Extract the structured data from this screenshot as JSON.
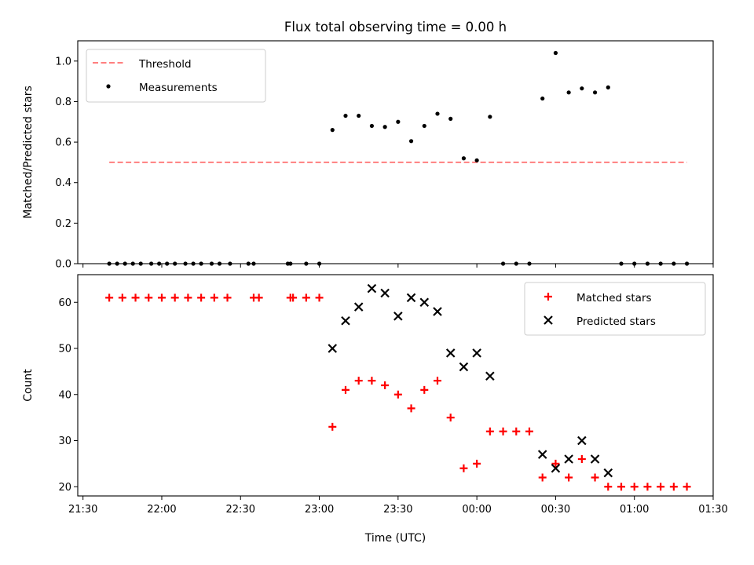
{
  "chart_data": [
    {
      "type": "scatter",
      "title": "Flux total observing time = 0.00 h",
      "xlabel": "",
      "ylabel": "Matched/Predicted stars",
      "xlim": [
        "21:28",
        "01:30"
      ],
      "ylim": [
        0,
        1.1
      ],
      "yticks": [
        "0.0",
        "0.2",
        "0.4",
        "0.6",
        "0.8",
        "1.0"
      ],
      "legend": {
        "position": "upper-left",
        "entries": [
          "Threshold",
          "Measurements"
        ]
      },
      "threshold": {
        "name": "Threshold",
        "value": 0.5,
        "x_start": "21:40",
        "x_end": "01:20",
        "color": "#ff7f7f",
        "style": "dashed"
      },
      "series": [
        {
          "name": "Measurements",
          "marker": "dot",
          "color": "#000000",
          "points": [
            [
              "21:40",
              0.0
            ],
            [
              "21:43",
              0.0
            ],
            [
              "21:46",
              0.0
            ],
            [
              "21:49",
              0.0
            ],
            [
              "21:52",
              0.0
            ],
            [
              "21:56",
              0.0
            ],
            [
              "21:59",
              0.0
            ],
            [
              "22:02",
              0.0
            ],
            [
              "22:05",
              0.0
            ],
            [
              "22:09",
              0.0
            ],
            [
              "22:12",
              0.0
            ],
            [
              "22:15",
              0.0
            ],
            [
              "22:19",
              0.0
            ],
            [
              "22:22",
              0.0
            ],
            [
              "22:26",
              0.0
            ],
            [
              "22:33",
              0.0
            ],
            [
              "22:35",
              0.0
            ],
            [
              "22:48",
              0.0
            ],
            [
              "22:49",
              0.0
            ],
            [
              "22:55",
              0.0
            ],
            [
              "23:00",
              0.0
            ],
            [
              "23:05",
              0.66
            ],
            [
              "23:10",
              0.73
            ],
            [
              "23:15",
              0.73
            ],
            [
              "23:20",
              0.68
            ],
            [
              "23:25",
              0.675
            ],
            [
              "23:30",
              0.7
            ],
            [
              "23:35",
              0.605
            ],
            [
              "23:40",
              0.68
            ],
            [
              "23:45",
              0.74
            ],
            [
              "23:50",
              0.715
            ],
            [
              "23:55",
              0.52
            ],
            [
              "00:00",
              0.51
            ],
            [
              "00:05",
              0.725
            ],
            [
              "00:10",
              0.0
            ],
            [
              "00:15",
              0.0
            ],
            [
              "00:20",
              0.0
            ],
            [
              "00:25",
              0.815
            ],
            [
              "00:30",
              1.04
            ],
            [
              "00:35",
              0.845
            ],
            [
              "00:40",
              0.865
            ],
            [
              "00:45",
              0.845
            ],
            [
              "00:50",
              0.87
            ],
            [
              "00:55",
              0.0
            ],
            [
              "01:00",
              0.0
            ],
            [
              "01:05",
              0.0
            ],
            [
              "01:10",
              0.0
            ],
            [
              "01:15",
              0.0
            ],
            [
              "01:20",
              0.0
            ]
          ]
        }
      ]
    },
    {
      "type": "scatter",
      "title": "",
      "xlabel": "Time (UTC)",
      "ylabel": "Count",
      "xlim": [
        "21:28",
        "01:30"
      ],
      "ylim": [
        18,
        66
      ],
      "xticks": [
        "21:30",
        "22:00",
        "22:30",
        "23:00",
        "23:30",
        "00:00",
        "00:30",
        "01:00",
        "01:30"
      ],
      "yticks": [
        "20",
        "30",
        "40",
        "50",
        "60"
      ],
      "legend": {
        "position": "upper-right",
        "entries": [
          "Matched stars",
          "Predicted stars"
        ]
      },
      "series": [
        {
          "name": "Matched stars",
          "marker": "plus",
          "color": "#ff0000",
          "points": [
            [
              "21:40",
              61
            ],
            [
              "21:45",
              61
            ],
            [
              "21:50",
              61
            ],
            [
              "21:55",
              61
            ],
            [
              "22:00",
              61
            ],
            [
              "22:05",
              61
            ],
            [
              "22:10",
              61
            ],
            [
              "22:15",
              61
            ],
            [
              "22:20",
              61
            ],
            [
              "22:25",
              61
            ],
            [
              "22:35",
              61
            ],
            [
              "22:37",
              61
            ],
            [
              "22:49",
              61
            ],
            [
              "22:50",
              61
            ],
            [
              "22:55",
              61
            ],
            [
              "23:00",
              61
            ],
            [
              "23:05",
              33
            ],
            [
              "23:10",
              41
            ],
            [
              "23:15",
              43
            ],
            [
              "23:20",
              43
            ],
            [
              "23:25",
              42
            ],
            [
              "23:30",
              40
            ],
            [
              "23:35",
              37
            ],
            [
              "23:40",
              41
            ],
            [
              "23:45",
              43
            ],
            [
              "23:50",
              35
            ],
            [
              "23:55",
              24
            ],
            [
              "00:00",
              25
            ],
            [
              "00:05",
              32
            ],
            [
              "00:10",
              32
            ],
            [
              "00:15",
              32
            ],
            [
              "00:20",
              32
            ],
            [
              "00:25",
              22
            ],
            [
              "00:30",
              25
            ],
            [
              "00:35",
              22
            ],
            [
              "00:40",
              26
            ],
            [
              "00:45",
              22
            ],
            [
              "00:50",
              20
            ],
            [
              "00:55",
              20
            ],
            [
              "01:00",
              20
            ],
            [
              "01:05",
              20
            ],
            [
              "01:10",
              20
            ],
            [
              "01:15",
              20
            ],
            [
              "01:20",
              20
            ]
          ]
        },
        {
          "name": "Predicted stars",
          "marker": "x",
          "color": "#000000",
          "points": [
            [
              "23:05",
              50
            ],
            [
              "23:10",
              56
            ],
            [
              "23:15",
              59
            ],
            [
              "23:20",
              63
            ],
            [
              "23:25",
              62
            ],
            [
              "23:30",
              57
            ],
            [
              "23:35",
              61
            ],
            [
              "23:40",
              60
            ],
            [
              "23:45",
              58
            ],
            [
              "23:50",
              49
            ],
            [
              "23:55",
              46
            ],
            [
              "00:00",
              49
            ],
            [
              "00:05",
              44
            ],
            [
              "00:25",
              27
            ],
            [
              "00:30",
              24
            ],
            [
              "00:35",
              26
            ],
            [
              "00:40",
              30
            ],
            [
              "00:45",
              26
            ],
            [
              "00:50",
              23
            ]
          ]
        }
      ]
    }
  ]
}
